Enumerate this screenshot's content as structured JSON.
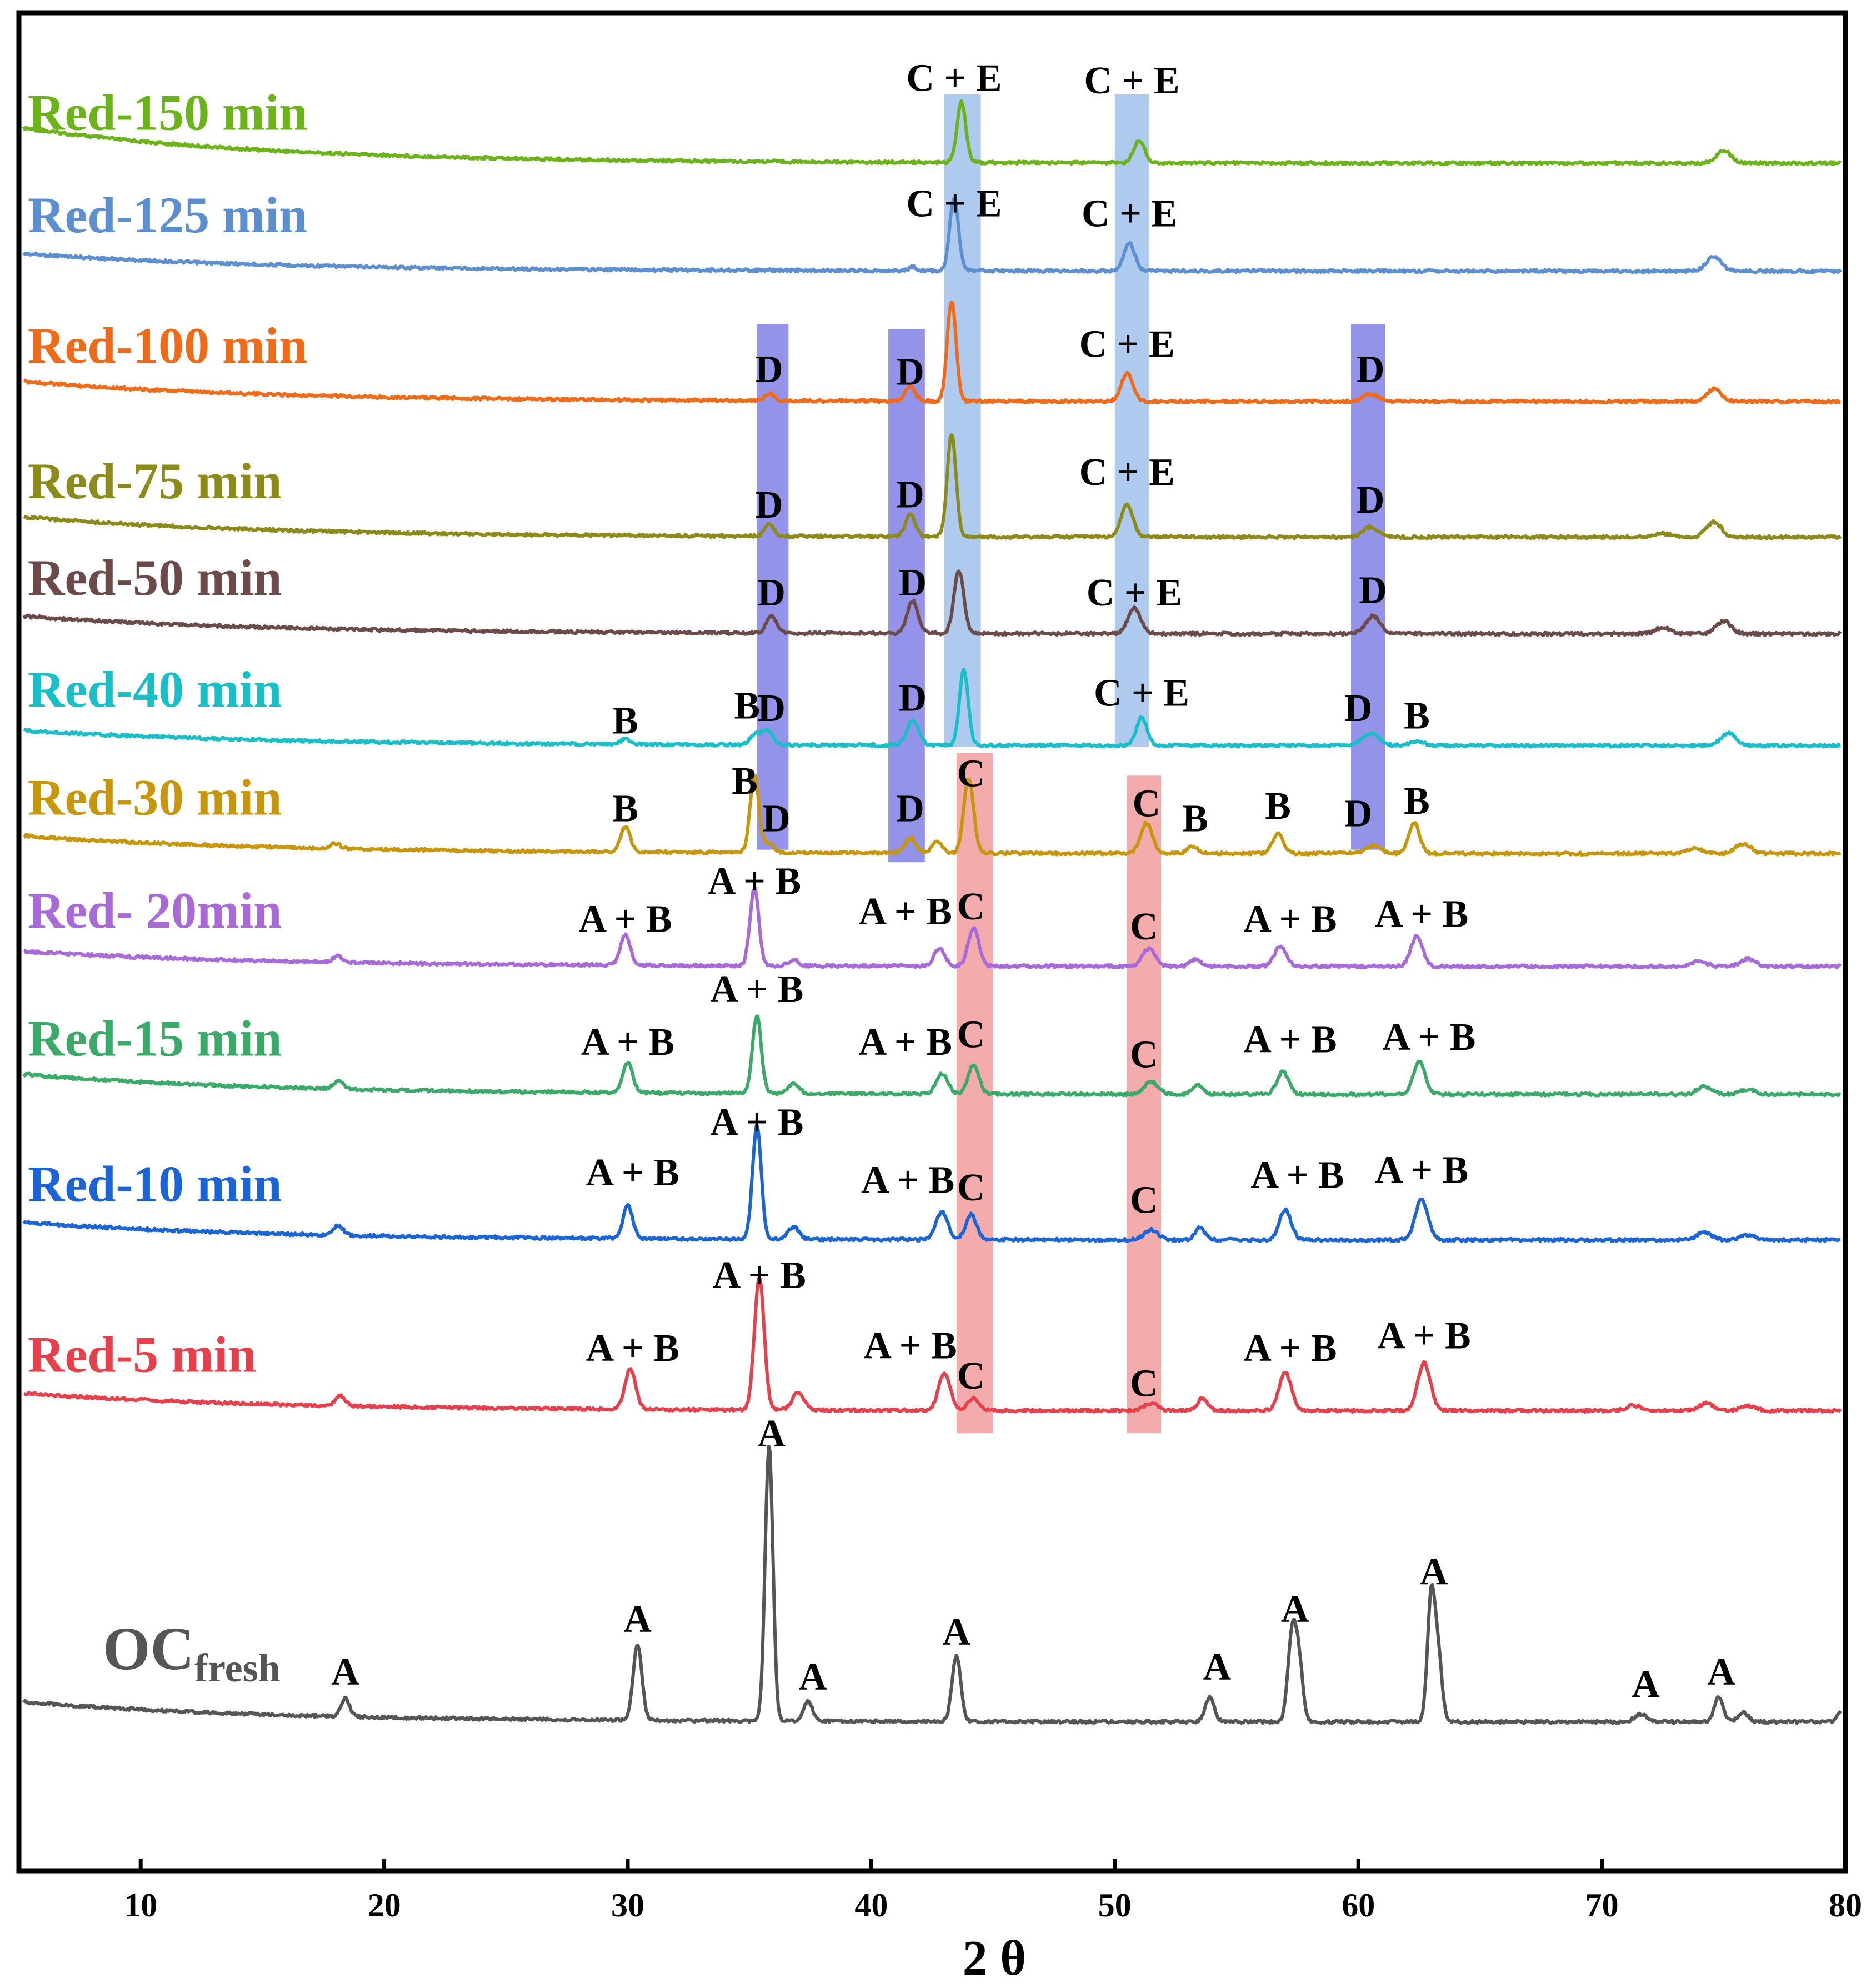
{
  "chart_data": {
    "type": "line",
    "title": "",
    "xlabel": "2 θ",
    "ylabel": "",
    "xlim": [
      5,
      80
    ],
    "xticks": [
      "10",
      "20",
      "30",
      "40",
      "50",
      "60",
      "70",
      "80"
    ],
    "xtick_values": [
      10,
      20,
      30,
      40,
      50,
      60,
      70,
      80
    ],
    "grid": false,
    "legend": "inline labels at left of each trace",
    "series": [
      {
        "name": "Red-150 min",
        "color": "#6ab318",
        "baseline": 130,
        "start_offset": 28,
        "peaks": [
          [
            43.7,
            48,
            0.18
          ],
          [
            51.0,
            18,
            0.22
          ],
          [
            75.0,
            10,
            0.3
          ]
        ],
        "annotations": [
          {
            "x": 43.4,
            "y": 60,
            "text": "C + E"
          },
          {
            "x": 50.7,
            "y": 62,
            "text": "C + E"
          }
        ]
      },
      {
        "name": "Red-125 min",
        "color": "#5b8fd0",
        "baseline": 216,
        "start_offset": 14,
        "peaks": [
          [
            43.4,
            58,
            0.18
          ],
          [
            41.7,
            3,
            0.15
          ],
          [
            50.6,
            22,
            0.22
          ],
          [
            74.6,
            12,
            0.3
          ]
        ],
        "annotations": [
          {
            "x": 43.4,
            "y": 160,
            "text": "C + E"
          },
          {
            "x": 50.6,
            "y": 168,
            "text": "C + E"
          }
        ]
      },
      {
        "name": "Red-100 min",
        "color": "#f06a18",
        "baseline": 320,
        "start_offset": 16,
        "peaks": [
          [
            35.8,
            6,
            0.18
          ],
          [
            41.6,
            12,
            0.2
          ],
          [
            43.3,
            80,
            0.18
          ],
          [
            50.5,
            22,
            0.24
          ],
          [
            60.5,
            6,
            0.3
          ],
          [
            74.6,
            10,
            0.3
          ]
        ],
        "annotations": [
          {
            "x": 35.8,
            "y": 292,
            "text": "D"
          },
          {
            "x": 41.6,
            "y": 294,
            "text": "D"
          },
          {
            "x": 50.5,
            "y": 272,
            "text": "C + E"
          },
          {
            "x": 60.5,
            "y": 292,
            "text": "D"
          }
        ]
      },
      {
        "name": "Red-75 min",
        "color": "#8c8a18",
        "baseline": 428,
        "start_offset": 16,
        "peaks": [
          [
            35.8,
            10,
            0.18
          ],
          [
            41.6,
            18,
            0.2
          ],
          [
            43.3,
            82,
            0.18
          ],
          [
            50.5,
            26,
            0.24
          ],
          [
            60.5,
            8,
            0.3
          ],
          [
            74.6,
            12,
            0.3
          ],
          [
            72.5,
            3,
            0.3
          ]
        ],
        "annotations": [
          {
            "x": 35.8,
            "y": 400,
            "text": "D"
          },
          {
            "x": 41.6,
            "y": 392,
            "text": "D"
          },
          {
            "x": 50.5,
            "y": 374,
            "text": "C + E"
          },
          {
            "x": 60.5,
            "y": 396,
            "text": "D"
          }
        ]
      },
      {
        "name": "Red-50 min",
        "color": "#6b4a48",
        "baseline": 505,
        "start_offset": 14,
        "peaks": [
          [
            35.9,
            14,
            0.2
          ],
          [
            41.7,
            26,
            0.22
          ],
          [
            43.6,
            50,
            0.2
          ],
          [
            50.8,
            20,
            0.26
          ],
          [
            60.6,
            14,
            0.3
          ],
          [
            75.0,
            10,
            0.3
          ],
          [
            72.5,
            5,
            0.3
          ]
        ],
        "annotations": [
          {
            "x": 35.9,
            "y": 470,
            "text": "D"
          },
          {
            "x": 41.7,
            "y": 462,
            "text": "D"
          },
          {
            "x": 50.8,
            "y": 470,
            "text": "C + E"
          },
          {
            "x": 60.6,
            "y": 468,
            "text": "D"
          }
        ]
      },
      {
        "name": "Red-40 min",
        "color": "#18bec8",
        "baseline": 594,
        "start_offset": 12,
        "peaks": [
          [
            29.9,
            4,
            0.2
          ],
          [
            35.2,
            8,
            0.2
          ],
          [
            35.7,
            12,
            0.22
          ],
          [
            41.7,
            20,
            0.24
          ],
          [
            43.8,
            60,
            0.18
          ],
          [
            51.1,
            22,
            0.22
          ],
          [
            60.5,
            10,
            0.35
          ],
          [
            62.4,
            3,
            0.3
          ],
          [
            75.2,
            10,
            0.3
          ]
        ],
        "annotations": [
          {
            "x": 29.9,
            "y": 572,
            "text": "B"
          },
          {
            "x": 34.9,
            "y": 560,
            "text": "B"
          },
          {
            "x": 35.9,
            "y": 562,
            "text": "D"
          },
          {
            "x": 41.7,
            "y": 554,
            "text": "D"
          },
          {
            "x": 51.1,
            "y": 550,
            "text": "C + E"
          },
          {
            "x": 60.0,
            "y": 562,
            "text": "D"
          },
          {
            "x": 62.4,
            "y": 568,
            "text": "B"
          }
        ]
      },
      {
        "name": "Red-30 min",
        "color": "#c8960a",
        "baseline": 680,
        "start_offset": 14,
        "peaks": [
          [
            29.9,
            20,
            0.2
          ],
          [
            35.2,
            62,
            0.18
          ],
          [
            35.8,
            8,
            0.2
          ],
          [
            41.6,
            12,
            0.22
          ],
          [
            42.7,
            10,
            0.2
          ],
          [
            44.0,
            60,
            0.2
          ],
          [
            51.3,
            24,
            0.24
          ],
          [
            53.2,
            6,
            0.2
          ],
          [
            56.7,
            16,
            0.22
          ],
          [
            60.6,
            6,
            0.3
          ],
          [
            62.3,
            24,
            0.22
          ],
          [
            73.8,
            4,
            0.3
          ],
          [
            75.8,
            8,
            0.3
          ],
          [
            18.0,
            4,
            0.2
          ]
        ],
        "annotations": [
          {
            "x": 29.9,
            "y": 642,
            "text": "B"
          },
          {
            "x": 34.8,
            "y": 620,
            "text": "B"
          },
          {
            "x": 36.1,
            "y": 650,
            "text": "D"
          },
          {
            "x": 41.6,
            "y": 642,
            "text": "D"
          },
          {
            "x": 44.1,
            "y": 614,
            "text": "C"
          },
          {
            "x": 51.3,
            "y": 638,
            "text": "C"
          },
          {
            "x": 53.3,
            "y": 650,
            "text": "B"
          },
          {
            "x": 56.7,
            "y": 640,
            "text": "B"
          },
          {
            "x": 60.0,
            "y": 646,
            "text": "D"
          },
          {
            "x": 62.4,
            "y": 636,
            "text": "B"
          }
        ]
      },
      {
        "name": "Red- 20min",
        "color": "#a86ad8",
        "baseline": 770,
        "start_offset": 12,
        "peaks": [
          [
            18.1,
            5,
            0.2
          ],
          [
            29.9,
            24,
            0.2
          ],
          [
            35.2,
            62,
            0.18
          ],
          [
            36.8,
            5,
            0.2
          ],
          [
            42.8,
            14,
            0.22
          ],
          [
            44.2,
            30,
            0.22
          ],
          [
            51.4,
            14,
            0.26
          ],
          [
            53.3,
            6,
            0.2
          ],
          [
            56.8,
            16,
            0.24
          ],
          [
            62.4,
            24,
            0.24
          ],
          [
            74.0,
            4,
            0.3
          ],
          [
            76.0,
            6,
            0.3
          ]
        ],
        "annotations": [
          {
            "x": 29.9,
            "y": 730,
            "text": "A + B"
          },
          {
            "x": 35.2,
            "y": 700,
            "text": "A + B"
          },
          {
            "x": 41.4,
            "y": 724,
            "text": "A + B"
          },
          {
            "x": 44.1,
            "y": 720,
            "text": "C"
          },
          {
            "x": 51.2,
            "y": 736,
            "text": "C"
          },
          {
            "x": 57.2,
            "y": 730,
            "text": "A + B"
          },
          {
            "x": 62.6,
            "y": 726,
            "text": "A + B"
          }
        ]
      },
      {
        "name": "Red-15 min",
        "color": "#3aaa68",
        "baseline": 872,
        "start_offset": 16,
        "peaks": [
          [
            18.1,
            6,
            0.2
          ],
          [
            30.0,
            24,
            0.2
          ],
          [
            35.3,
            62,
            0.18
          ],
          [
            36.8,
            8,
            0.22
          ],
          [
            42.9,
            16,
            0.24
          ],
          [
            44.2,
            24,
            0.22
          ],
          [
            51.5,
            10,
            0.28
          ],
          [
            53.4,
            8,
            0.2
          ],
          [
            56.9,
            18,
            0.24
          ],
          [
            62.5,
            26,
            0.24
          ],
          [
            74.2,
            6,
            0.3
          ],
          [
            76.0,
            4,
            0.3
          ]
        ],
        "annotations": [
          {
            "x": 30.0,
            "y": 828,
            "text": "A + B"
          },
          {
            "x": 35.3,
            "y": 786,
            "text": "A + B"
          },
          {
            "x": 41.4,
            "y": 828,
            "text": "A + B"
          },
          {
            "x": 44.1,
            "y": 822,
            "text": "C"
          },
          {
            "x": 51.2,
            "y": 838,
            "text": "C"
          },
          {
            "x": 57.2,
            "y": 826,
            "text": "A + B"
          },
          {
            "x": 62.9,
            "y": 824,
            "text": "A + B"
          }
        ]
      },
      {
        "name": "Red-10 min",
        "color": "#1a64d8",
        "baseline": 988,
        "start_offset": 14,
        "peaks": [
          [
            18.1,
            8,
            0.2
          ],
          [
            30.0,
            26,
            0.2
          ],
          [
            35.3,
            90,
            0.18
          ],
          [
            36.8,
            10,
            0.22
          ],
          [
            42.9,
            22,
            0.24
          ],
          [
            44.1,
            20,
            0.22
          ],
          [
            51.5,
            8,
            0.28
          ],
          [
            53.5,
            10,
            0.2
          ],
          [
            57.0,
            24,
            0.24
          ],
          [
            62.6,
            32,
            0.26
          ],
          [
            74.2,
            6,
            0.3
          ],
          [
            76.0,
            4,
            0.3
          ]
        ],
        "annotations": [
          {
            "x": 30.2,
            "y": 932,
            "text": "A + B"
          },
          {
            "x": 35.3,
            "y": 892,
            "text": "A + B"
          },
          {
            "x": 41.5,
            "y": 938,
            "text": "A + B"
          },
          {
            "x": 44.1,
            "y": 944,
            "text": "C"
          },
          {
            "x": 51.2,
            "y": 954,
            "text": "C"
          },
          {
            "x": 57.5,
            "y": 934,
            "text": "A + B"
          },
          {
            "x": 62.6,
            "y": 930,
            "text": "A + B"
          }
        ]
      },
      {
        "name": "Red-5 min",
        "color": "#e8404a",
        "baseline": 1124,
        "start_offset": 14,
        "peaks": [
          [
            18.2,
            8,
            0.2
          ],
          [
            30.1,
            32,
            0.22
          ],
          [
            35.4,
            106,
            0.2
          ],
          [
            37.0,
            14,
            0.24
          ],
          [
            43.0,
            30,
            0.24
          ],
          [
            44.2,
            10,
            0.22
          ],
          [
            51.5,
            6,
            0.28
          ],
          [
            53.6,
            10,
            0.2
          ],
          [
            57.0,
            30,
            0.26
          ],
          [
            62.7,
            38,
            0.26
          ],
          [
            71.3,
            4,
            0.3
          ],
          [
            74.3,
            6,
            0.3
          ],
          [
            76.0,
            4,
            0.3
          ]
        ],
        "annotations": [
          {
            "x": 30.2,
            "y": 1072,
            "text": "A + B"
          },
          {
            "x": 35.4,
            "y": 1014,
            "text": "A + B"
          },
          {
            "x": 41.6,
            "y": 1070,
            "text": "A + B"
          },
          {
            "x": 44.1,
            "y": 1094,
            "text": "C"
          },
          {
            "x": 51.2,
            "y": 1100,
            "text": "C"
          },
          {
            "x": 57.2,
            "y": 1072,
            "text": "A + B"
          },
          {
            "x": 62.7,
            "y": 1062,
            "text": "A + B"
          }
        ]
      },
      {
        "name": "OCfresh",
        "color": "#555555",
        "baseline": 1372,
        "start_offset": 16,
        "peaks": [
          [
            18.4,
            14,
            0.18
          ],
          [
            30.4,
            60,
            0.18
          ],
          [
            35.8,
            220,
            0.16
          ],
          [
            37.4,
            16,
            0.18
          ],
          [
            43.5,
            52,
            0.18
          ],
          [
            53.9,
            20,
            0.18
          ],
          [
            57.3,
            76,
            0.18
          ],
          [
            57.6,
            36,
            0.15
          ],
          [
            63.0,
            102,
            0.16
          ],
          [
            63.3,
            46,
            0.15
          ],
          [
            71.6,
            6,
            0.25
          ],
          [
            74.8,
            20,
            0.18
          ],
          [
            75.8,
            8,
            0.2
          ],
          [
            79.8,
            8,
            0.15
          ]
        ],
        "annotations": [
          {
            "x": 18.4,
            "y": 1330,
            "text": "A"
          },
          {
            "x": 30.4,
            "y": 1288,
            "text": "A"
          },
          {
            "x": 35.9,
            "y": 1140,
            "text": "A"
          },
          {
            "x": 37.6,
            "y": 1334,
            "text": "A"
          },
          {
            "x": 43.5,
            "y": 1298,
            "text": "A"
          },
          {
            "x": 54.2,
            "y": 1326,
            "text": "A"
          },
          {
            "x": 57.4,
            "y": 1280,
            "text": "A"
          },
          {
            "x": 63.1,
            "y": 1250,
            "text": "A"
          },
          {
            "x": 71.8,
            "y": 1340,
            "text": "A"
          },
          {
            "x": 74.9,
            "y": 1330,
            "text": "A"
          }
        ]
      }
    ],
    "highlight_bands": [
      {
        "phase": "C + E",
        "x_from": 43.0,
        "x_to": 44.5,
        "y_from": 75,
        "y_to": 595,
        "color": "#8fb6e8"
      },
      {
        "phase": "C + E",
        "x_from": 50.0,
        "x_to": 51.4,
        "y_from": 75,
        "y_to": 595,
        "color": "#8fb6e8"
      },
      {
        "phase": "D",
        "x_from": 35.3,
        "x_to": 36.6,
        "y_from": 258,
        "y_to": 677,
        "color": "#6a6ae0"
      },
      {
        "phase": "D",
        "x_from": 40.7,
        "x_to": 42.2,
        "y_from": 262,
        "y_to": 687,
        "color": "#6a6ae0"
      },
      {
        "phase": "D",
        "x_from": 59.7,
        "x_to": 61.1,
        "y_from": 258,
        "y_to": 677,
        "color": "#6a6ae0"
      },
      {
        "phase": "C",
        "x_from": 43.5,
        "x_to": 45.0,
        "y_from": 600,
        "y_to": 1142,
        "color": "#f08a8a"
      },
      {
        "phase": "C",
        "x_from": 50.5,
        "x_to": 51.9,
        "y_from": 618,
        "y_to": 1142,
        "color": "#f08a8a"
      }
    ],
    "y_units_note": "baseline, peak heights and annotation y are in the figure's vertical intensity-offset units (0 = top of plot, 1465 = x-axis)"
  }
}
